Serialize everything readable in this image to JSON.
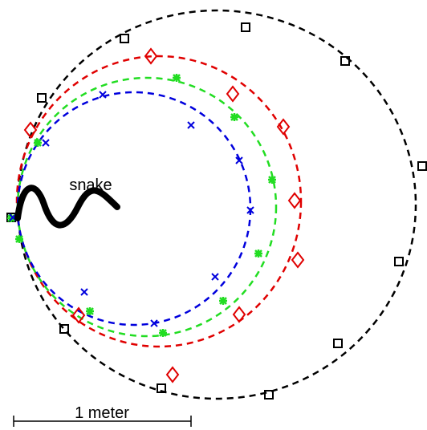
{
  "labels": {
    "snake": "snake",
    "scale": "1 meter"
  }
}
